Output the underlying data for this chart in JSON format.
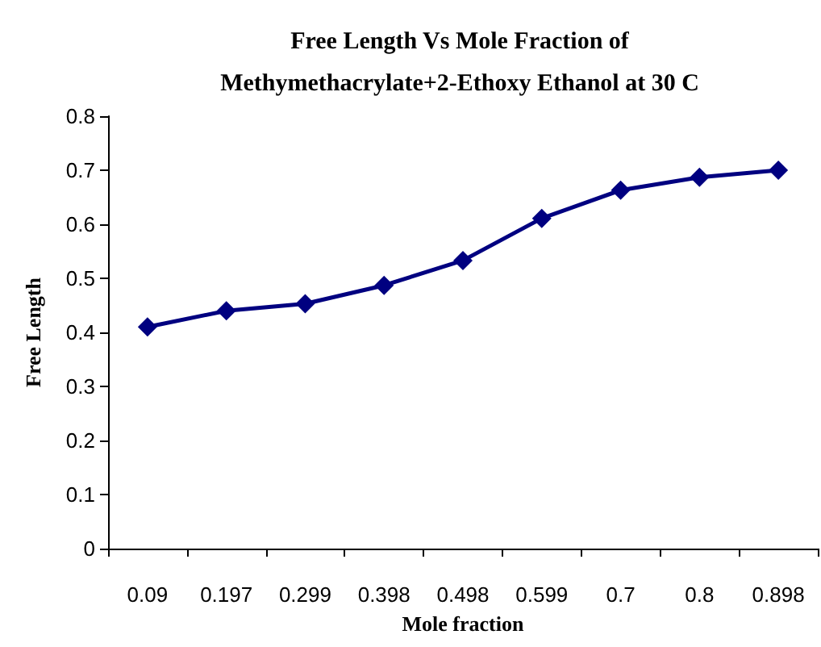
{
  "chart_data": {
    "type": "line",
    "title": "Free Length Vs Mole Fraction of\nMethymethacrylate+2-Ethoxy Ethanol at 30 C",
    "xlabel": "Mole fraction",
    "ylabel": "Free Length",
    "categories": [
      "0.09",
      "0.197",
      "0.299",
      "0.398",
      "0.498",
      "0.599",
      "0.7",
      "0.8",
      "0.898"
    ],
    "series": [
      {
        "color": "#000080",
        "values": [
          0.41,
          0.44,
          0.453,
          0.487,
          0.533,
          0.611,
          0.663,
          0.687,
          0.7
        ]
      }
    ],
    "ylim": [
      0,
      0.8
    ],
    "yticks": [
      0,
      0.1,
      0.2,
      0.3,
      0.4,
      0.5,
      0.6,
      0.7,
      0.8
    ],
    "grid": false,
    "marker": "diamond",
    "line_style": "solid"
  }
}
